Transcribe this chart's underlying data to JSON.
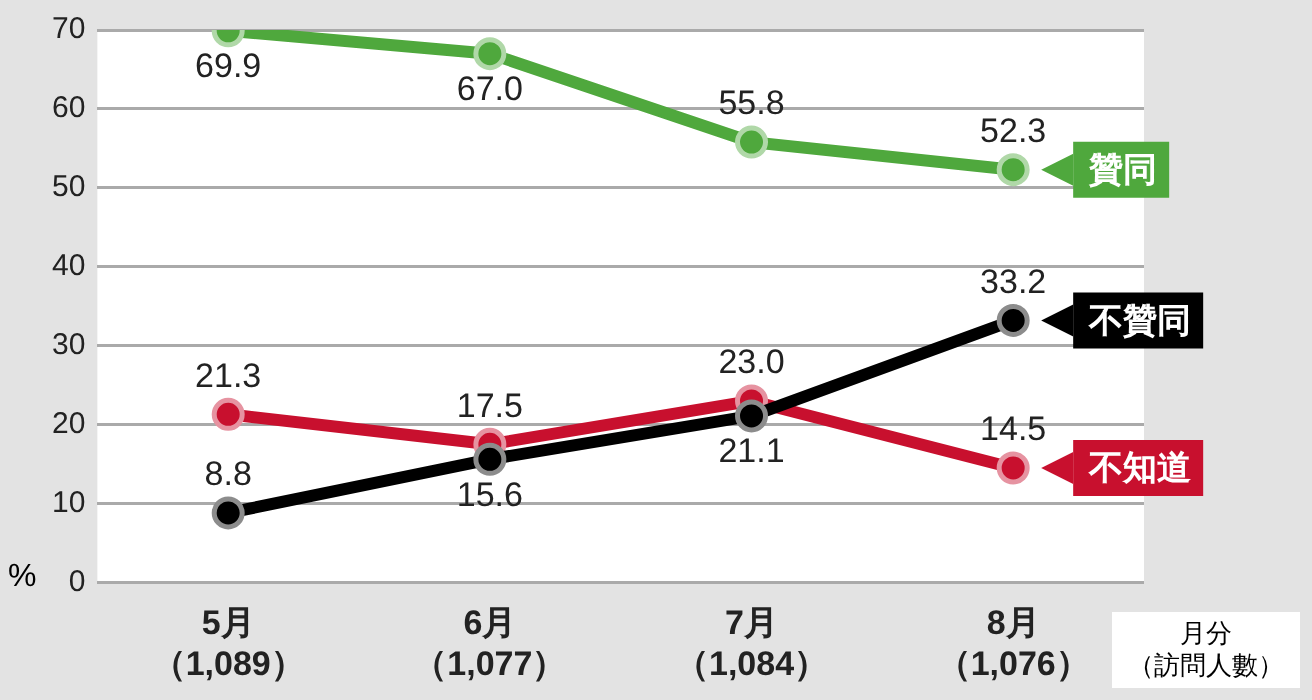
{
  "chart_data": {
    "type": "line",
    "categories": [
      "5月（1,089）",
      "6月（1,077）",
      "7月（1,084）",
      "8月（1,076）"
    ],
    "xlabel": "月分（訪問人數）",
    "ylabel": "%",
    "ylim": [
      0,
      70
    ],
    "yticks": [
      0,
      10,
      20,
      30,
      40,
      50,
      60,
      70
    ],
    "grid": "y",
    "legend": "right",
    "marker": "circle",
    "line_style": "solid",
    "series": [
      {
        "name": "贊同",
        "color": "#4fa83d",
        "values": [
          69.9,
          67.0,
          55.8,
          52.3
        ],
        "value_labels": [
          "69.9",
          "67.0",
          "55.8",
          "52.3"
        ]
      },
      {
        "name": "不贊同",
        "color": "#000000",
        "values": [
          8.8,
          15.6,
          21.1,
          33.2
        ],
        "value_labels": [
          "8.8",
          "15.6",
          "21.1",
          "33.2"
        ]
      },
      {
        "name": "不知道",
        "color": "#c8102e",
        "values": [
          21.3,
          17.5,
          23.0,
          14.5
        ],
        "value_labels": [
          "21.3",
          "17.5",
          "23.0",
          "14.5"
        ]
      }
    ]
  }
}
